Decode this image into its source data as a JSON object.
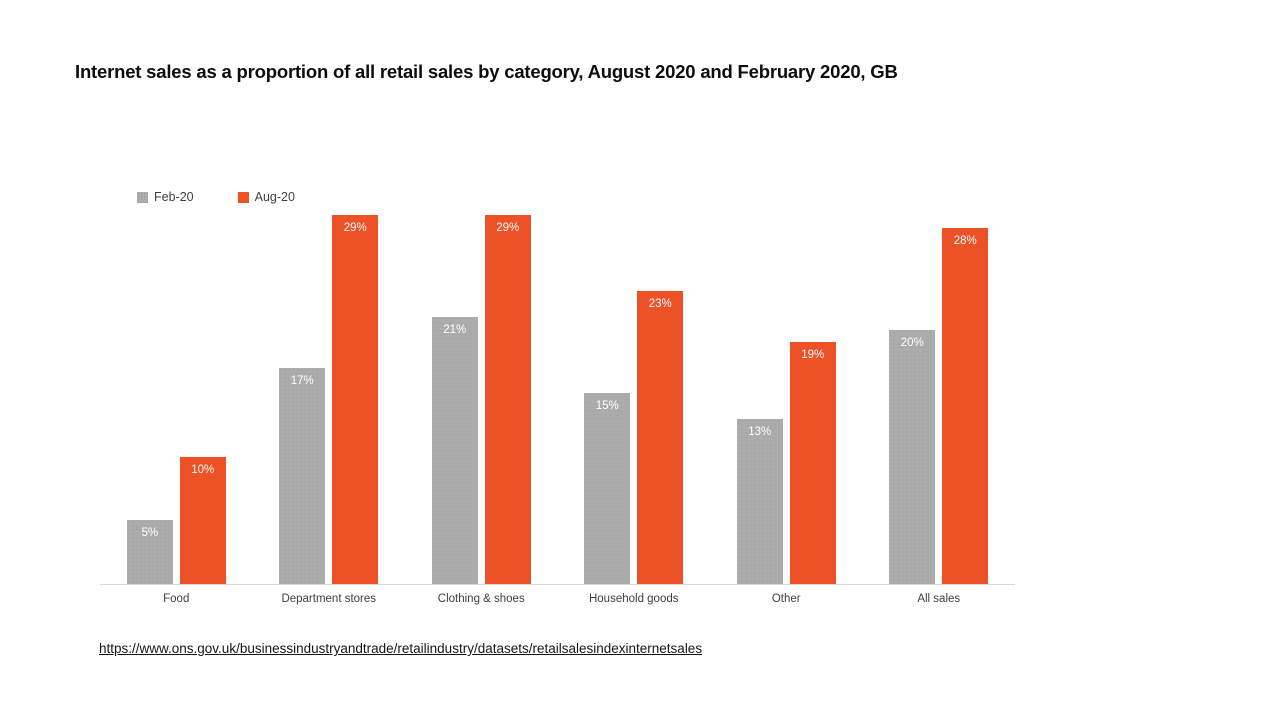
{
  "slide": {
    "title": "Internet sales as a proportion of all retail sales by category, August 2020 and February 2020, GB",
    "source_url": "https://www.ons.gov.uk/businessindustryandtrade/retailindustry/datasets/retailsalesindexinternetsales"
  },
  "colors": {
    "feb_series": "#ACACAC",
    "feb_texture_dot": "#9A9A9A",
    "aug_series": "#ED5126",
    "axis_line": "#D9D9D9",
    "category_text": "#3F3F3F",
    "bar_value_text": "#FFFFFF",
    "title_text": "#0D0D0D",
    "background": "#FFFFFF"
  },
  "chart_data": {
    "type": "bar",
    "title": "Internet sales as a proportion of all retail sales by category, August 2020 and February 2020, GB",
    "categories": [
      "Food",
      "Department stores",
      "Clothing & shoes",
      "Household goods",
      "Other",
      "All sales"
    ],
    "series": [
      {
        "name": "Feb-20",
        "values": [
          5,
          17,
          21,
          15,
          13,
          20
        ],
        "labels": [
          "5%",
          "17%",
          "21%",
          "15%",
          "13%",
          "20%"
        ],
        "color": "#ACACAC"
      },
      {
        "name": "Aug-20",
        "values": [
          10,
          29,
          29,
          23,
          19,
          28
        ],
        "labels": [
          "10%",
          "29%",
          "29%",
          "23%",
          "19%",
          "28%"
        ],
        "color": "#ED5126"
      }
    ],
    "xlabel": "",
    "ylabel": "",
    "ylim": [
      0,
      29
    ],
    "grid": false,
    "y_axis_visible": false,
    "legend_position": "top-left",
    "data_labels_position": "inside-end"
  }
}
